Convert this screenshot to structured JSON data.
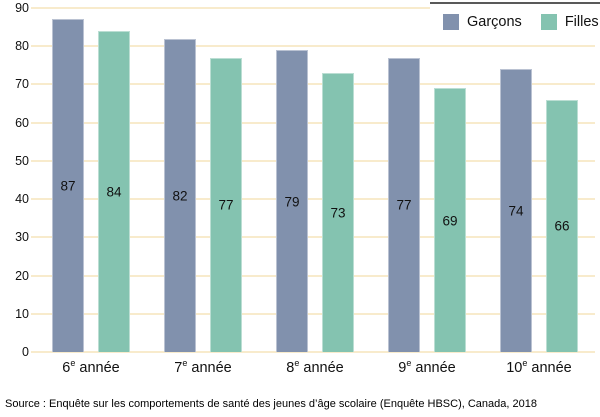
{
  "chart_data": {
    "type": "bar",
    "categories": [
      "6e année",
      "7e année",
      "8e année",
      "9e année",
      "10e année"
    ],
    "series": [
      {
        "name": "Garçons",
        "key": "garcons",
        "color": "#8191ad",
        "values": [
          87,
          82,
          79,
          77,
          74
        ]
      },
      {
        "name": "Filles",
        "key": "filles",
        "color": "#84c3b0",
        "values": [
          84,
          77,
          73,
          69,
          66
        ]
      }
    ],
    "title": "",
    "xlabel": "",
    "ylabel": "",
    "ylim": [
      0,
      90
    ],
    "yticks": [
      0,
      10,
      20,
      30,
      40,
      50,
      60,
      70,
      80,
      90
    ],
    "grid": "horizontal",
    "gridline_color": "#f8ebcc",
    "legend_position": "top-right",
    "legend_border_color": "#595959",
    "value_labels": "inside-center"
  },
  "source_note": "Source : Enquête sur les comportements de santé des jeunes d’âge scolaire (Enquête HBSC), Canada, 2018"
}
